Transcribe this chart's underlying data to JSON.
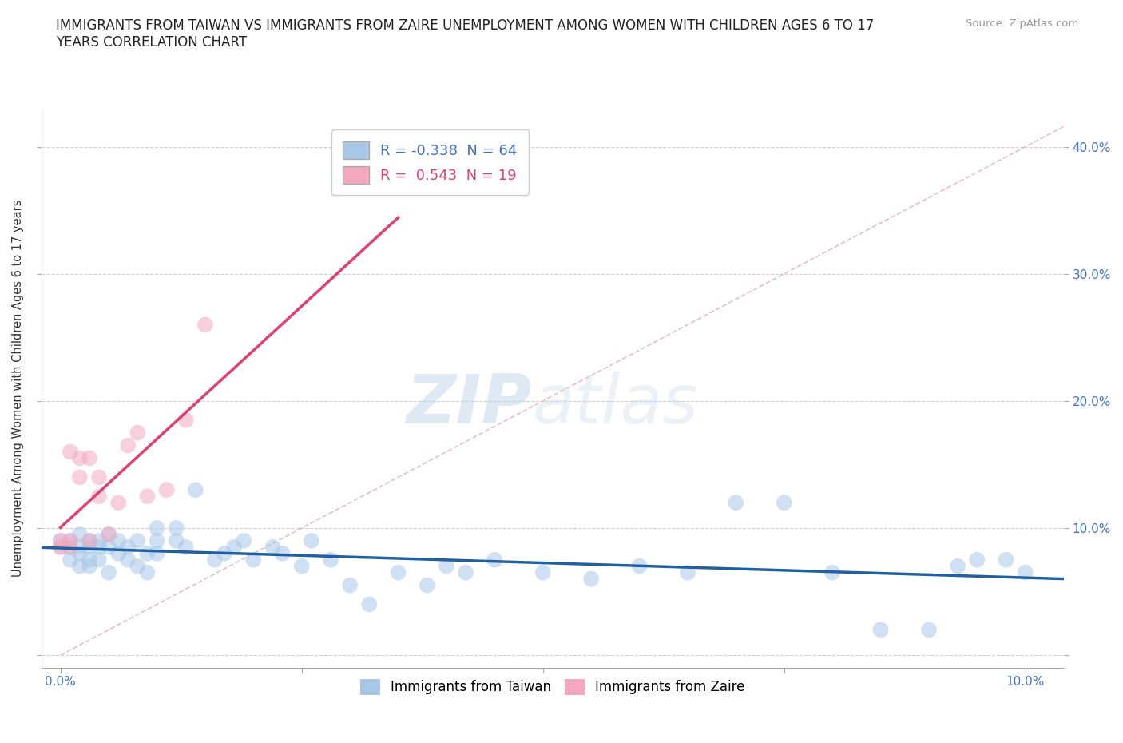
{
  "title": "IMMIGRANTS FROM TAIWAN VS IMMIGRANTS FROM ZAIRE UNEMPLOYMENT AMONG WOMEN WITH CHILDREN AGES 6 TO 17\nYEARS CORRELATION CHART",
  "source": "Source: ZipAtlas.com",
  "ylabel": "Unemployment Among Women with Children Ages 6 to 17 years",
  "xmin": -0.002,
  "xmax": 0.104,
  "ymin": -0.01,
  "ymax": 0.43,
  "yticks": [
    0.0,
    0.1,
    0.2,
    0.3,
    0.4
  ],
  "ytick_labels": [
    "",
    "10.0%",
    "20.0%",
    "30.0%",
    "40.0%"
  ],
  "xticks": [
    0.0,
    0.025,
    0.05,
    0.075,
    0.1
  ],
  "xtick_labels": [
    "0.0%",
    "",
    "",
    "",
    "10.0%"
  ],
  "taiwan_R": -0.338,
  "taiwan_N": 64,
  "zaire_R": 0.543,
  "zaire_N": 19,
  "taiwan_color": "#a8c8e8",
  "zaire_color": "#f4a8c0",
  "taiwan_line_color": "#2060a0",
  "zaire_line_color": "#e04070",
  "diagonal_color": "#e0b0b8",
  "taiwan_x": [
    0.0,
    0.0,
    0.001,
    0.001,
    0.001,
    0.002,
    0.002,
    0.002,
    0.002,
    0.003,
    0.003,
    0.003,
    0.003,
    0.004,
    0.004,
    0.004,
    0.005,
    0.005,
    0.005,
    0.006,
    0.006,
    0.007,
    0.007,
    0.008,
    0.008,
    0.009,
    0.009,
    0.01,
    0.01,
    0.01,
    0.012,
    0.012,
    0.013,
    0.014,
    0.016,
    0.017,
    0.018,
    0.019,
    0.02,
    0.022,
    0.023,
    0.025,
    0.026,
    0.028,
    0.03,
    0.032,
    0.035,
    0.038,
    0.04,
    0.042,
    0.045,
    0.05,
    0.055,
    0.06,
    0.065,
    0.07,
    0.075,
    0.08,
    0.085,
    0.09,
    0.093,
    0.095,
    0.098,
    0.1
  ],
  "taiwan_y": [
    0.09,
    0.085,
    0.09,
    0.085,
    0.075,
    0.095,
    0.085,
    0.08,
    0.07,
    0.09,
    0.085,
    0.075,
    0.07,
    0.085,
    0.09,
    0.075,
    0.095,
    0.085,
    0.065,
    0.09,
    0.08,
    0.085,
    0.075,
    0.09,
    0.07,
    0.08,
    0.065,
    0.1,
    0.09,
    0.08,
    0.1,
    0.09,
    0.085,
    0.13,
    0.075,
    0.08,
    0.085,
    0.09,
    0.075,
    0.085,
    0.08,
    0.07,
    0.09,
    0.075,
    0.055,
    0.04,
    0.065,
    0.055,
    0.07,
    0.065,
    0.075,
    0.065,
    0.06,
    0.07,
    0.065,
    0.12,
    0.12,
    0.065,
    0.02,
    0.02,
    0.07,
    0.075,
    0.075,
    0.065
  ],
  "zaire_x": [
    0.0,
    0.0,
    0.001,
    0.001,
    0.001,
    0.002,
    0.002,
    0.003,
    0.003,
    0.004,
    0.004,
    0.005,
    0.006,
    0.007,
    0.008,
    0.009,
    0.011,
    0.013,
    0.015
  ],
  "zaire_y": [
    0.09,
    0.085,
    0.09,
    0.085,
    0.16,
    0.155,
    0.14,
    0.09,
    0.155,
    0.14,
    0.125,
    0.095,
    0.12,
    0.165,
    0.175,
    0.125,
    0.13,
    0.185,
    0.26
  ],
  "zaire_line_xmin": 0.0,
  "zaire_line_xmax": 0.035,
  "watermark_zip": "ZIP",
  "watermark_atlas": "atlas",
  "background_color": "#ffffff",
  "grid_color": "#cccccc"
}
